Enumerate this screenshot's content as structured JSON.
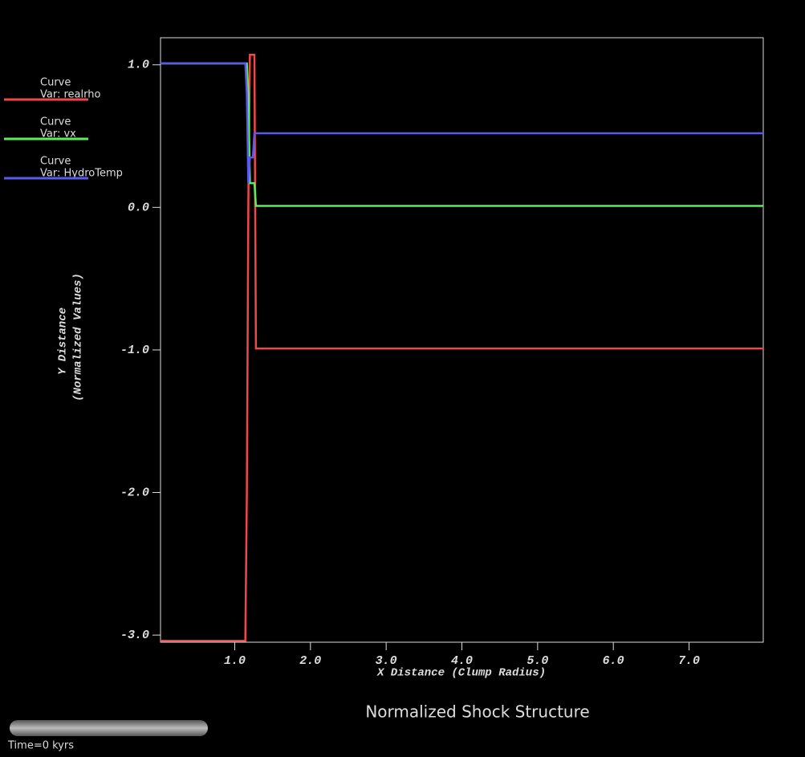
{
  "chart_data": {
    "type": "line",
    "title": "Normalized Shock Structure",
    "xlabel": "X Distance (Clump Radius)",
    "ylabel": [
      "Y Distance",
      "(Normalized Values)"
    ],
    "legend_heading": "Curve",
    "time_label": "Time=0 kyrs",
    "x": [
      0.02,
      1.14,
      1.16,
      1.18,
      1.2,
      1.22,
      1.24,
      1.26,
      1.28,
      7.98
    ],
    "series": [
      {
        "name": "Var: realrho",
        "color": "#f04848",
        "values": [
          -3.04,
          -3.04,
          -2.02,
          0.05,
          1.07,
          1.07,
          1.07,
          1.07,
          -0.99,
          -0.99
        ]
      },
      {
        "name": "Var: vx",
        "color": "#58f058",
        "values": [
          1.01,
          1.01,
          1.01,
          0.8,
          0.17,
          0.17,
          0.17,
          0.17,
          0.01,
          0.01
        ]
      },
      {
        "name": "Var: HydroTemp",
        "color": "#5a5af0",
        "values": [
          1.01,
          1.01,
          0.8,
          0.17,
          0.35,
          0.35,
          0.35,
          0.52,
          0.52,
          0.52
        ]
      }
    ],
    "xlim": [
      0.02,
      7.98
    ],
    "ylim": [
      -3.05,
      1.19
    ],
    "xticks": [
      {
        "value": 1,
        "label": "1.0"
      },
      {
        "value": 2,
        "label": "2.0"
      },
      {
        "value": 3,
        "label": "3.0"
      },
      {
        "value": 4,
        "label": "4.0"
      },
      {
        "value": 5,
        "label": "5.0"
      },
      {
        "value": 6,
        "label": "6.0"
      },
      {
        "value": 7,
        "label": "7.0"
      }
    ],
    "yticks": [
      {
        "value": -3,
        "label": "-3.0"
      },
      {
        "value": -2,
        "label": "-2.0"
      },
      {
        "value": -1,
        "label": "-1.0"
      },
      {
        "value": 0,
        "label": "0.0"
      },
      {
        "value": 1,
        "label": "1.0"
      }
    ]
  }
}
